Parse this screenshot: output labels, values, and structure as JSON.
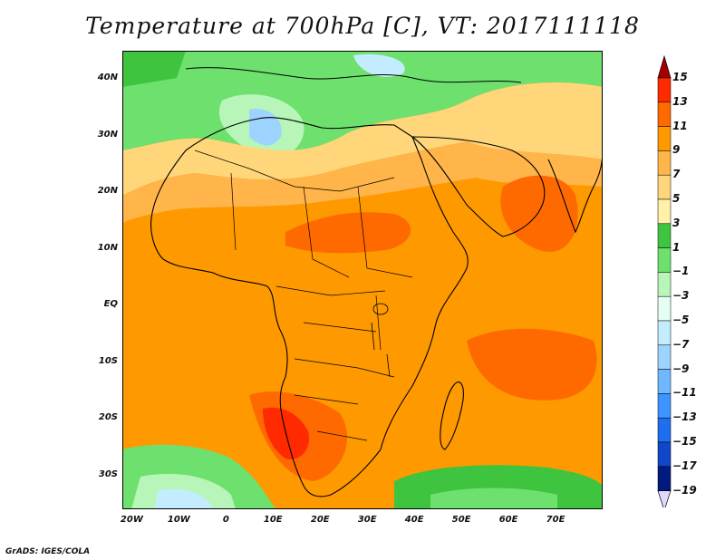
{
  "title": "Temperature at 700hPa [C], VT: 2017111118",
  "credit": "GrADS: IGES/COLA",
  "map": {
    "lon_range": [
      -22,
      80
    ],
    "lat_range": [
      -36,
      45
    ],
    "lat_ticks": [
      "40N",
      "30N",
      "20N",
      "10N",
      "EQ",
      "10S",
      "20S",
      "30S"
    ],
    "lat_values": [
      40,
      30,
      20,
      10,
      0,
      -10,
      -20,
      -30
    ],
    "lon_ticks": [
      "20W",
      "10W",
      "0",
      "10E",
      "20E",
      "30E",
      "40E",
      "50E",
      "60E",
      "70E"
    ],
    "lon_values": [
      -20,
      -10,
      0,
      10,
      20,
      30,
      40,
      50,
      60,
      70
    ]
  },
  "colorbar": {
    "labels": [
      "15",
      "13",
      "11",
      "9",
      "7",
      "5",
      "3",
      "1",
      "−1",
      "−3",
      "−5",
      "−7",
      "−9",
      "−11",
      "−13",
      "−15",
      "−17",
      "−19"
    ],
    "colors": {
      "top_arrow": "#a50000",
      "c13_15": "#ff2a00",
      "c11_13": "#ff6a00",
      "c9_11": "#ff9900",
      "c7_9": "#ffb54a",
      "c5_7": "#ffd77a",
      "c3_5": "#fff2a8",
      "c1_3": "#3fc43f",
      "cm1_1": "#6ee06e",
      "cm3_m1": "#b8f5b8",
      "cm5_m3": "#e6fff5",
      "cm7_m5": "#c4ecff",
      "cm9_m7": "#9dd4ff",
      "cm11_m9": "#6fb8ff",
      "cm13_m11": "#3f95ff",
      "cm15_m13": "#1f6ef0",
      "cm17_m15": "#1048c8",
      "cm19_m17": "#001a80",
      "bottom_arrow": "#e0d8ff"
    }
  }
}
